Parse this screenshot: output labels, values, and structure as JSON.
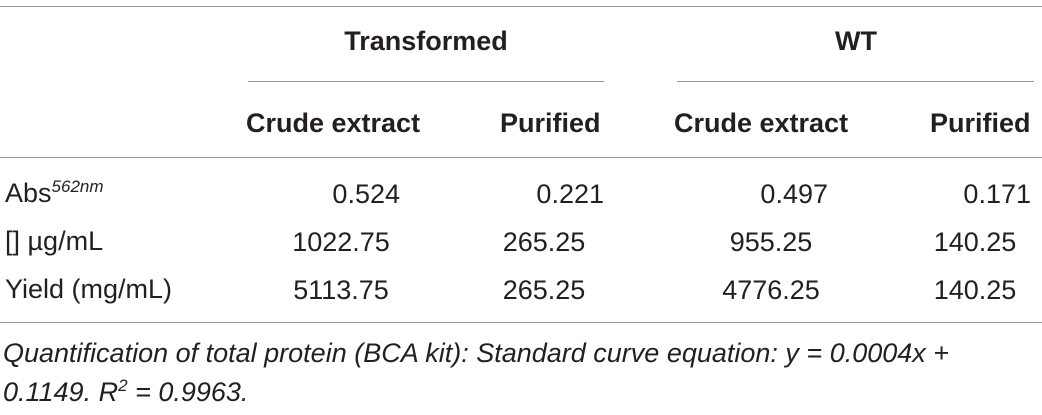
{
  "table": {
    "group_headers": [
      "Transformed",
      "WT"
    ],
    "column_headers": [
      "Crude extract",
      "Purified",
      "Crude extract",
      "Purified"
    ],
    "rows": [
      {
        "label": "Abs",
        "label_sup": "562nm",
        "values": [
          "0.524",
          "0.221",
          "0.497",
          "0.171"
        ]
      },
      {
        "label": "[] µg/mL",
        "values": [
          "1022.75",
          "265.25",
          "955.25",
          "140.25"
        ]
      },
      {
        "label": "Yield (mg/mL)",
        "values": [
          "5113.75",
          "265.25",
          "4776.25",
          "140.25"
        ]
      }
    ]
  },
  "footnote": {
    "main": "Quantification of total protein (BCA kit): Standard curve equation: y = 0.0004x + 0.1149. R",
    "sup": "2",
    "tail": " = 0.9963."
  }
}
